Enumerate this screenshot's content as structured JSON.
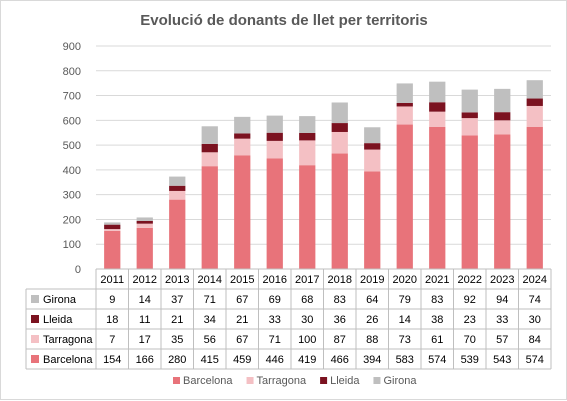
{
  "chart_data": {
    "type": "bar",
    "stacked": true,
    "title": "Evolució de donants de llet per territoris",
    "categories": [
      "2011",
      "2012",
      "2013",
      "2014",
      "2015",
      "2016",
      "2017",
      "2018",
      "2019",
      "2020",
      "2021",
      "2022",
      "2023",
      "2024"
    ],
    "ylim": [
      0,
      900
    ],
    "yticks": [
      0,
      100,
      200,
      300,
      400,
      500,
      600,
      700,
      800,
      900
    ],
    "grid": true,
    "legend_position": "bottom",
    "series": [
      {
        "name": "Barcelona",
        "color": "#e8737a",
        "values": [
          154,
          166,
          280,
          415,
          459,
          446,
          419,
          466,
          394,
          583,
          574,
          539,
          543,
          574
        ]
      },
      {
        "name": "Tarragona",
        "color": "#f4c0c4",
        "values": [
          7,
          17,
          35,
          56,
          67,
          71,
          100,
          87,
          88,
          73,
          61,
          70,
          57,
          84
        ]
      },
      {
        "name": "Lleida",
        "color": "#7b1220",
        "values": [
          18,
          11,
          21,
          34,
          21,
          33,
          30,
          36,
          26,
          14,
          38,
          23,
          33,
          30
        ]
      },
      {
        "name": "Girona",
        "color": "#bfbfbf",
        "values": [
          9,
          14,
          37,
          71,
          67,
          69,
          68,
          83,
          64,
          79,
          83,
          92,
          94,
          74
        ]
      }
    ],
    "table_row_order": [
      "Girona",
      "Lleida",
      "Tarragona",
      "Barcelona"
    ]
  }
}
